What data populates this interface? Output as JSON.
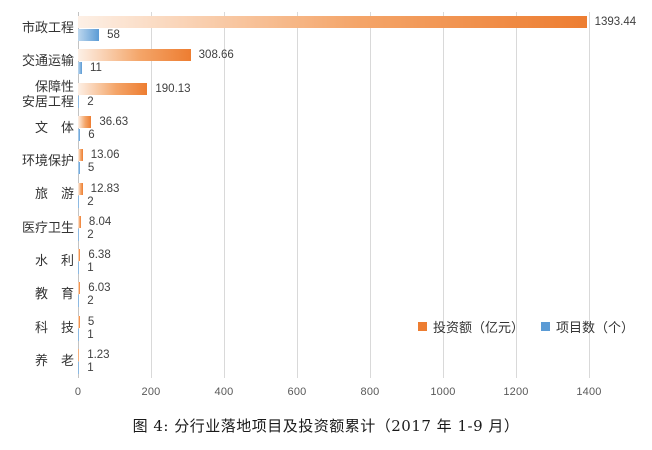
{
  "chart_data": {
    "type": "bar",
    "orientation": "horizontal",
    "title": "",
    "categories": [
      "市政工程",
      "交通运输",
      "保障性\n安居工程",
      "文　体",
      "环境保护",
      "旅　游",
      "医疗卫生",
      "水　利",
      "教　育",
      "科　技",
      "养　老"
    ],
    "series": [
      {
        "name": "投资额（亿元）",
        "color": "#ED7D31",
        "values": [
          1393.44,
          308.66,
          190.13,
          36.63,
          13.06,
          12.83,
          8.04,
          6.38,
          6.03,
          5,
          1.23
        ],
        "value_labels": [
          "1393.44",
          "308.66",
          "190.13",
          "36.63",
          "13.06",
          "12.83",
          "8.04",
          "6.38",
          "6.03",
          "5",
          "1.23"
        ]
      },
      {
        "name": "项目数（个）",
        "color": "#5B9BD5",
        "values": [
          58,
          11,
          2,
          6,
          5,
          2,
          2,
          1,
          2,
          1,
          1
        ],
        "value_labels": [
          "58",
          "11",
          "2",
          "6",
          "5",
          "2",
          "2",
          "1",
          "2",
          "1",
          "1"
        ]
      }
    ],
    "x_ticks": [
      0,
      200,
      400,
      600,
      800,
      1000,
      1200,
      1400
    ],
    "x_tick_labels": [
      "0",
      "200",
      "400",
      "600",
      "800",
      "1000",
      "1200",
      "1400"
    ],
    "xlim": [
      0,
      1600
    ],
    "grid": "vertical",
    "legend_position": "inside-bottom-right"
  },
  "caption": "图 4: 分行业落地项目及投资额累计（2017 年 1-9 月）",
  "colors": {
    "investment_bar": "#ED7D31",
    "investment_bar_light": "#FDF0E6",
    "project_bar": "#5B9BD5",
    "project_bar_light": "#BDD7EE",
    "gridline": "#D9D9D9",
    "tick_text": "#595959",
    "value_text": "#404040",
    "label_text": "#333333"
  }
}
